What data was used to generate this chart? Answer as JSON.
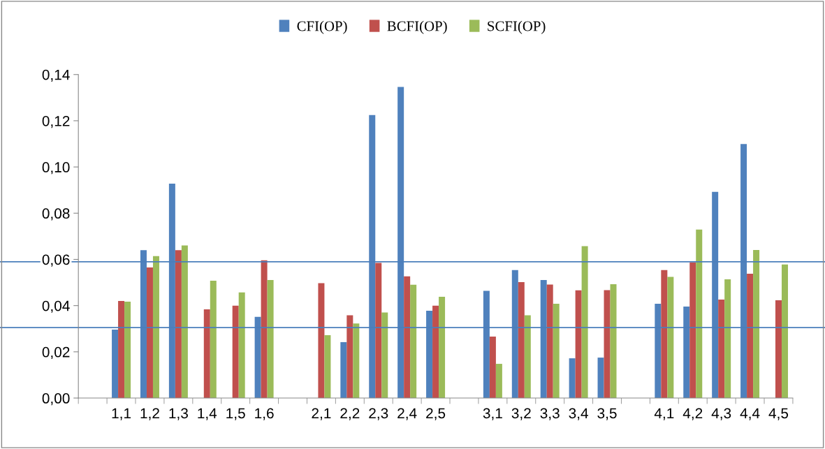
{
  "chart_data": {
    "type": "bar",
    "categories": [
      null,
      "1,1",
      "1,2",
      "1,3",
      "1,4",
      "1,5",
      "1,6",
      null,
      "2,1",
      "2,2",
      "2,3",
      "2,4",
      "2,5",
      null,
      "3,1",
      "3,2",
      "3,3",
      "3,4",
      "3,5",
      null,
      "4,1",
      "4,2",
      "4,3",
      "4,4",
      "4,5"
    ],
    "series": [
      {
        "name": "CFI(OP)",
        "color": "#4f81bd",
        "values": [
          null,
          0.0296,
          0.064,
          0.0928,
          0,
          0,
          0.0351,
          0,
          0,
          0.0242,
          0.1225,
          0.1346,
          0.0378,
          0,
          0.0464,
          0.0554,
          0.0511,
          0.0172,
          0.0175,
          0,
          0.0408,
          0.0396,
          0.0892,
          0.1099,
          0
        ]
      },
      {
        "name": "BCFI(OP)",
        "color": "#c0504d",
        "values": [
          null,
          0.042,
          0.0565,
          0.064,
          0.0384,
          0.04,
          0.0596,
          0,
          0.0497,
          0.0358,
          0.0585,
          0.0527,
          0.04,
          0,
          0.0266,
          0.0502,
          0.0491,
          0.0466,
          0.0467,
          0,
          0.0554,
          0.0587,
          0.0426,
          0.0538,
          0.0423
        ]
      },
      {
        "name": "SCFI(OP)",
        "color": "#9bbb59",
        "values": [
          null,
          0.0417,
          0.0614,
          0.066,
          0.0508,
          0.0457,
          0.0511,
          0,
          0.0272,
          0.0323,
          0.037,
          0.049,
          0.0438,
          0,
          0.0148,
          0.0358,
          0.0408,
          0.0657,
          0.0493,
          0,
          0.0524,
          0.0729,
          0.0514,
          0.0641,
          0.0578
        ]
      }
    ],
    "ylim": [
      0,
      0.14
    ],
    "yticks": [
      {
        "value": 0,
        "label": "0,00"
      },
      {
        "value": 0.02,
        "label": "0,02"
      },
      {
        "value": 0.04,
        "label": "0,04"
      },
      {
        "value": 0.06,
        "label": "0,06"
      },
      {
        "value": 0.08,
        "label": "0,08"
      },
      {
        "value": 0.1,
        "label": "0,10"
      },
      {
        "value": 0.12,
        "label": "0,12"
      },
      {
        "value": 0.14,
        "label": "0,14"
      }
    ],
    "ref_lines": [
      {
        "axis": "y",
        "value": 0.059,
        "color": "#4a7ebb"
      },
      {
        "axis": "y",
        "value": 0.0305,
        "color": "#4a7ebb"
      }
    ],
    "grid": false,
    "legend": "top"
  }
}
